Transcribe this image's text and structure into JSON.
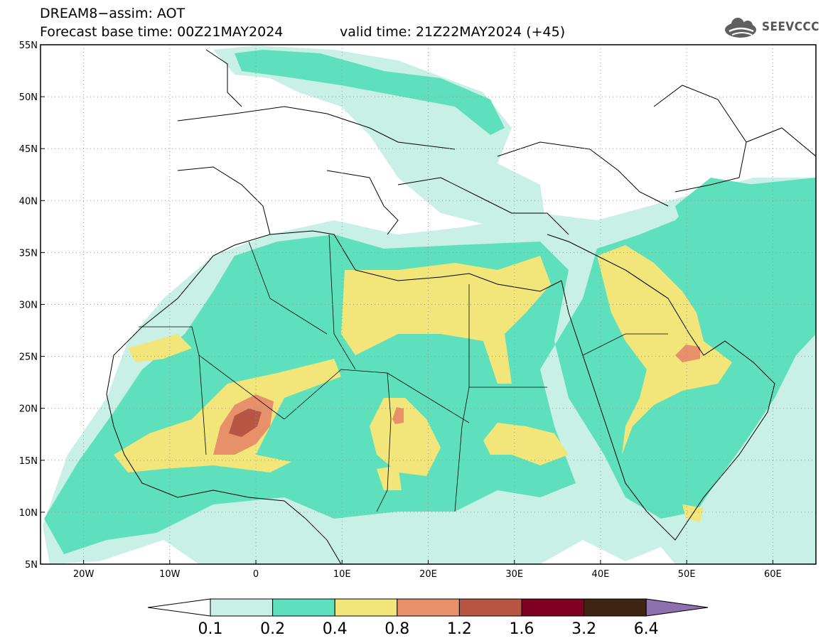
{
  "header": {
    "line1": "DREAM8−assim: AOT",
    "line2": "Forecast base time: 00Z21MAY2024",
    "valid": "valid time: 21Z22MAY2024 (+45)"
  },
  "logo": {
    "text": "SEEVCCC",
    "icon": "cloud-logo-icon"
  },
  "map": {
    "lon_range": [
      -25,
      65
    ],
    "lat_range": [
      5,
      55
    ],
    "lon_ticks": [
      {
        "v": -20,
        "label": "20W"
      },
      {
        "v": -10,
        "label": "10W"
      },
      {
        "v": 0,
        "label": "0"
      },
      {
        "v": 10,
        "label": "10E"
      },
      {
        "v": 20,
        "label": "20E"
      },
      {
        "v": 30,
        "label": "30E"
      },
      {
        "v": 40,
        "label": "40E"
      },
      {
        "v": 50,
        "label": "50E"
      },
      {
        "v": 60,
        "label": "60E"
      }
    ],
    "lat_ticks": [
      {
        "v": 5,
        "label": "5N"
      },
      {
        "v": 10,
        "label": "10N"
      },
      {
        "v": 15,
        "label": "15N"
      },
      {
        "v": 20,
        "label": "20N"
      },
      {
        "v": 25,
        "label": "25N"
      },
      {
        "v": 30,
        "label": "30N"
      },
      {
        "v": 35,
        "label": "35N"
      },
      {
        "v": 40,
        "label": "40N"
      },
      {
        "v": 45,
        "label": "45N"
      },
      {
        "v": 50,
        "label": "50N"
      },
      {
        "v": 55,
        "label": "55N"
      }
    ]
  },
  "colorbar": {
    "levels": [
      "0.1",
      "0.2",
      "0.4",
      "0.8",
      "1.2",
      "1.6",
      "3.2",
      "6.4"
    ],
    "colors": [
      "#c9f0e6",
      "#5ee0bc",
      "#f2e67a",
      "#e8906a",
      "#b85644",
      "#800024",
      "#3f2414",
      "#8e6fb0"
    ]
  }
}
